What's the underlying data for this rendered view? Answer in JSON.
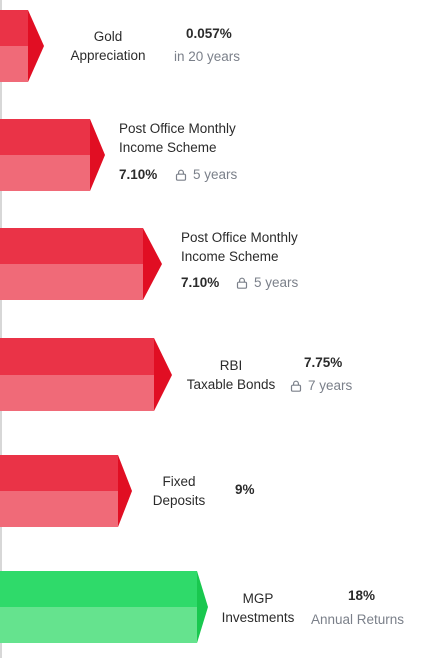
{
  "colors": {
    "red_front": "#f06a78",
    "red_top": "#ea3347",
    "red_tip": "#e10e23",
    "green_front": "#65e38e",
    "green_top": "#2fda6a",
    "green_tip": "#19c84f",
    "text": "#2b2b2b",
    "muted": "#7b808a"
  },
  "rows": [
    {
      "name": "Gold Appreciation",
      "line1": "Gold",
      "line2": "Appreciation",
      "rate": "0.057%",
      "tenure": "in 20 years",
      "lock": false
    },
    {
      "name": "Post Office Monthly Income Scheme",
      "line1": "Post Office Monthly",
      "line2": "Income Scheme",
      "rate": "7.10%",
      "tenure": "5 years",
      "lock": true
    },
    {
      "name": "Post Office Monthly Income Scheme",
      "line1": "Post Office Monthly",
      "line2": "Income Scheme",
      "rate": "7.10%",
      "tenure": "5 years",
      "lock": true
    },
    {
      "name": "RBI Taxable Bonds",
      "line1": "RBI",
      "line2": "Taxable Bonds",
      "rate": "7.75%",
      "tenure": "7 years",
      "lock": true
    },
    {
      "name": "Fixed Deposits",
      "line1": "Fixed",
      "line2": "Deposits",
      "rate": "9%",
      "tenure": "",
      "lock": false
    },
    {
      "name": "MGP Investments",
      "line1": "MGP",
      "line2": "Investments",
      "rate": "18%",
      "tenure": "Annual Returns",
      "lock": false,
      "highlight": true
    }
  ]
}
